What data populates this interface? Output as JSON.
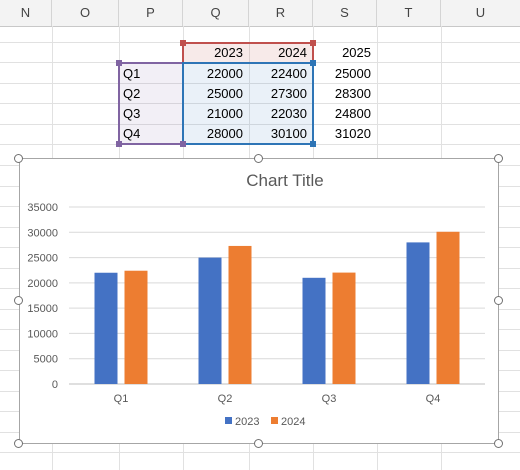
{
  "columns": [
    "N",
    "O",
    "P",
    "Q",
    "R",
    "S",
    "T",
    "U"
  ],
  "sheet": {
    "header_row": {
      "q": "2023",
      "r": "2024",
      "s": "2025"
    },
    "rows": [
      {
        "label": "Q1",
        "q": "22000",
        "r": "22400",
        "s": "25000"
      },
      {
        "label": "Q2",
        "q": "25000",
        "r": "27300",
        "s": "28300"
      },
      {
        "label": "Q3",
        "q": "21000",
        "r": "22030",
        "s": "24800"
      },
      {
        "label": "Q4",
        "q": "28000",
        "r": "30100",
        "s": "31020"
      }
    ]
  },
  "colors": {
    "series_2023": "#4472c4",
    "series_2024": "#ed7d31",
    "range_red": "#c0504d",
    "range_purple": "#8064a2",
    "range_blue": "#2e75b6"
  },
  "chart_data": {
    "type": "bar",
    "title": "Chart Title",
    "categories": [
      "Q1",
      "Q2",
      "Q3",
      "Q4"
    ],
    "series": [
      {
        "name": "2023",
        "values": [
          22000,
          25000,
          21000,
          28000
        ]
      },
      {
        "name": "2024",
        "values": [
          22400,
          27300,
          22030,
          30100
        ]
      }
    ],
    "ylim": [
      0,
      35000
    ],
    "yticks": [
      "0",
      "5000",
      "10000",
      "15000",
      "20000",
      "25000",
      "30000",
      "35000"
    ],
    "grid": true,
    "legend_position": "bottom"
  }
}
